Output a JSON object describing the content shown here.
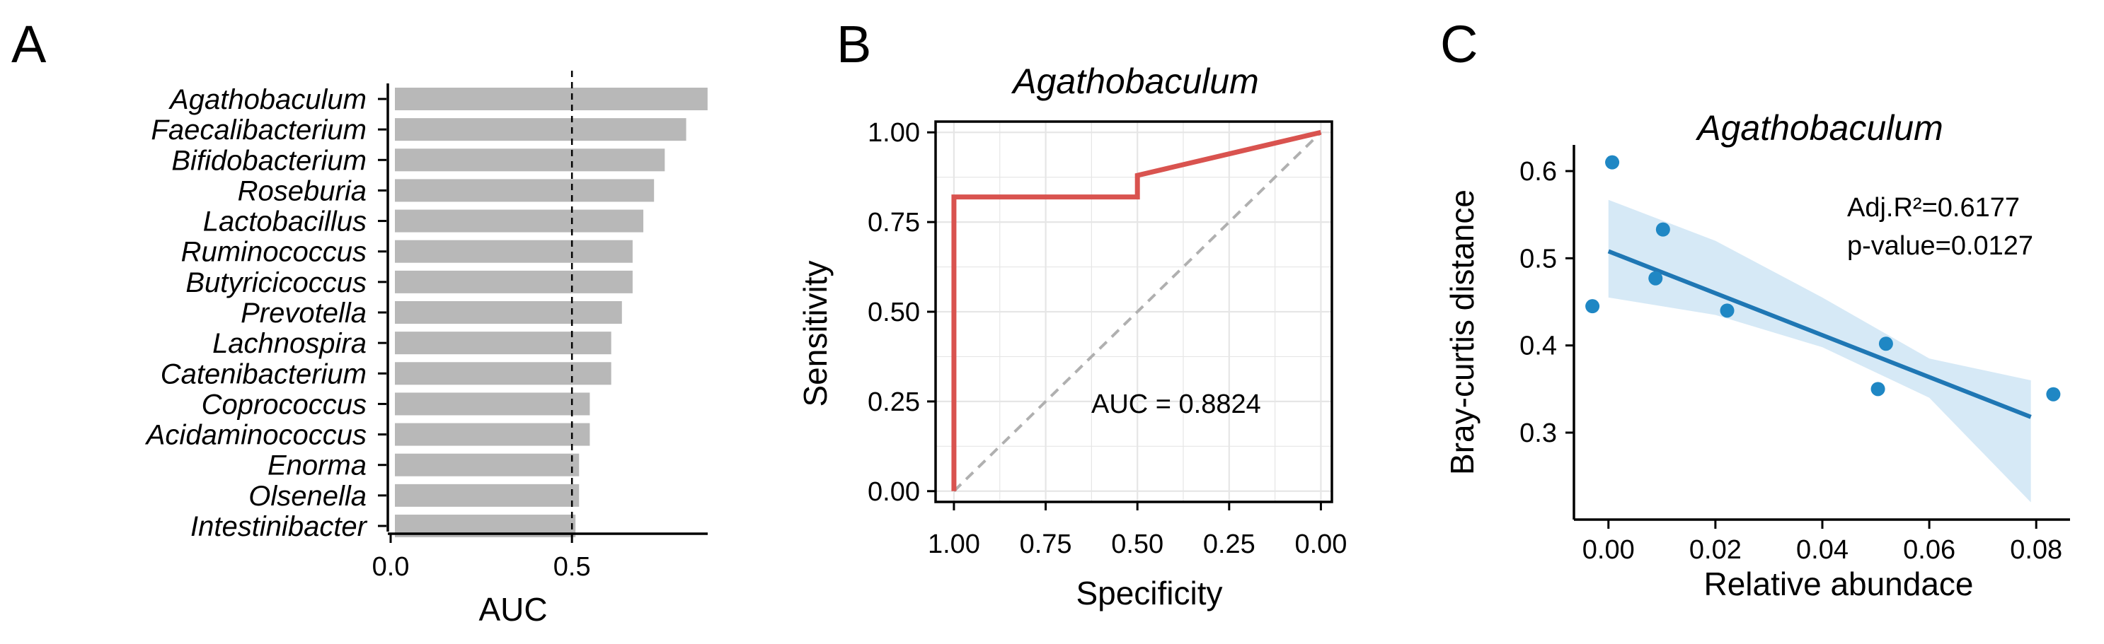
{
  "panels": {
    "A": {
      "letter": "A"
    },
    "B": {
      "letter": "B"
    },
    "C": {
      "letter": "C"
    }
  },
  "chart_data": [
    {
      "id": "A",
      "type": "bar",
      "orientation": "horizontal",
      "categories": [
        "Agathobaculum",
        "Faecalibacterium",
        "Bifidobacterium",
        "Roseburia",
        "Lactobacillus",
        "Ruminococcus",
        "Butyricicoccus",
        "Prevotella",
        "Lachnospira",
        "Catenibacterium",
        "Coprococcus",
        "Acidaminococcus",
        "Enorma",
        "Olsenella",
        "Intestinibacter"
      ],
      "values": [
        0.88,
        0.82,
        0.76,
        0.73,
        0.7,
        0.67,
        0.67,
        0.64,
        0.61,
        0.61,
        0.55,
        0.55,
        0.52,
        0.52,
        0.51
      ],
      "xlabel": "AUC",
      "xlim": [
        0,
        0.92
      ],
      "xticks": [
        0,
        0.5
      ],
      "xtick_labels": [
        "0.0",
        "0.5"
      ],
      "reference_line": 0.5,
      "bar_color": "#b8b8b8"
    },
    {
      "id": "B",
      "type": "line",
      "title": "Agathobaculum",
      "xlabel": "Specificity",
      "ylabel": "Sensitivity",
      "x_reversed": true,
      "xlim": [
        1.0,
        0.0
      ],
      "ylim": [
        0,
        1
      ],
      "ticks": [
        1.0,
        0.75,
        0.5,
        0.25,
        0.0
      ],
      "tick_labels": [
        "1.00",
        "0.75",
        "0.50",
        "0.25",
        "0.00"
      ],
      "series": [
        {
          "points": [
            [
              1.0,
              0.0
            ],
            [
              1.0,
              0.82
            ],
            [
              0.5,
              0.82
            ],
            [
              0.5,
              0.88
            ],
            [
              0.0,
              1.0
            ]
          ],
          "color": "#d9534f"
        }
      ],
      "diagonal_color": "#b0b0b0",
      "annotation": "AUC = 0.8824",
      "grid": true
    },
    {
      "id": "C",
      "type": "scatter",
      "title": "Agathobaculum",
      "xlabel": "Relative abundace",
      "ylabel": "Bray-curtis distance",
      "xlim": [
        -0.005,
        0.085
      ],
      "ylim": [
        0.27,
        0.63
      ],
      "xticks": [
        0.0,
        0.02,
        0.04,
        0.06,
        0.08
      ],
      "xtick_labels": [
        "0.00",
        "0.02",
        "0.04",
        "0.06",
        "0.08"
      ],
      "yticks": [
        0.3,
        0.4,
        0.5,
        0.6
      ],
      "ytick_labels": [
        "0.3",
        "0.4",
        "0.5",
        "0.6"
      ],
      "points": [
        [
          0.0007,
          0.61
        ],
        [
          -0.003,
          0.445
        ],
        [
          0.0088,
          0.477
        ],
        [
          0.0102,
          0.533
        ],
        [
          0.0222,
          0.44
        ],
        [
          0.0504,
          0.35
        ],
        [
          0.0519,
          0.402
        ],
        [
          0.0832,
          0.344
        ]
      ],
      "fit": {
        "x": [
          0.0,
          0.079
        ],
        "y": [
          0.508,
          0.318
        ]
      },
      "band": {
        "x": [
          0.0,
          0.02,
          0.04,
          0.06,
          0.079
        ],
        "lower": [
          0.455,
          0.435,
          0.398,
          0.34,
          0.22
        ],
        "upper": [
          0.567,
          0.52,
          0.455,
          0.385,
          0.36
        ]
      },
      "point_color": "#1f87c4",
      "line_color": "#1f77b4",
      "band_color": "#cfe5f4",
      "annotations": [
        "Adj.R²=0.6177",
        "p-value=0.0127"
      ]
    }
  ]
}
